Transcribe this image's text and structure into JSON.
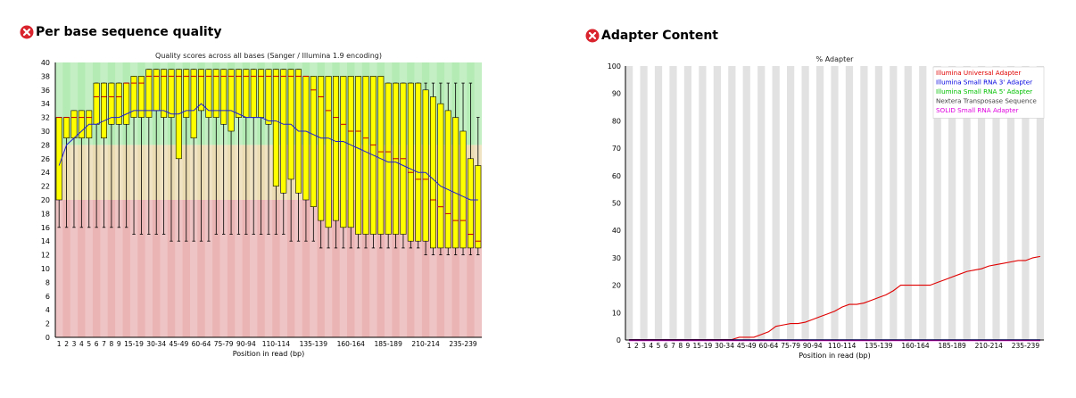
{
  "colors": {
    "fail_icon": "#d9232d",
    "box_fill": "#ffff00",
    "mean_line": "#1f1fd0",
    "median_line": "#c00000",
    "zone_good": "#b4ebb4",
    "zone_ok": "#ebdcb4",
    "zone_bad": "#ebb4b4",
    "adapter_line": "#d00000"
  },
  "chart_data": [
    {
      "type": "box",
      "heading": "Per base sequence quality",
      "title": "Quality scores across all bases (Sanger / Illumina 1.9 encoding)",
      "xlabel": "Position in read (bp)",
      "ylabel": "",
      "ylim": [
        0,
        40
      ],
      "y_ticks": [
        0,
        2,
        4,
        6,
        8,
        10,
        12,
        14,
        16,
        18,
        20,
        22,
        24,
        26,
        28,
        30,
        32,
        34,
        36,
        38,
        40
      ],
      "zones": [
        {
          "from": 0,
          "to": 20,
          "quality": "bad"
        },
        {
          "from": 20,
          "to": 28,
          "quality": "ok"
        },
        {
          "from": 28,
          "to": 40,
          "quality": "good"
        }
      ],
      "x_ticks": [
        "1",
        "2",
        "3",
        "4",
        "5",
        "6",
        "7",
        "8",
        "9",
        "15-19",
        "30-34",
        "45-49",
        "60-64",
        "75-79",
        "90-94",
        "110-114",
        "135-139",
        "160-164",
        "185-189",
        "210-214",
        "235-239"
      ],
      "categories": [
        "1",
        "2",
        "3",
        "4",
        "5",
        "6",
        "7",
        "8",
        "9",
        "10-14",
        "15-19",
        "20-24",
        "25-29",
        "30-34",
        "35-39",
        "40-44",
        "45-49",
        "50-54",
        "55-59",
        "60-64",
        "65-69",
        "70-74",
        "75-79",
        "80-84",
        "85-89",
        "90-94",
        "95-99",
        "100-104",
        "105-109",
        "110-114",
        "115-119",
        "120-124",
        "125-129",
        "130-134",
        "135-139",
        "140-144",
        "145-149",
        "150-154",
        "155-159",
        "160-164",
        "165-169",
        "170-174",
        "175-179",
        "180-184",
        "185-189",
        "190-194",
        "195-199",
        "200-204",
        "205-209",
        "210-214",
        "215-219",
        "220-224",
        "225-229",
        "230-234",
        "235-239",
        "240-244",
        "245-249"
      ],
      "series": [
        {
          "name": "lower_whisker",
          "values": [
            16,
            16,
            16,
            16,
            16,
            16,
            16,
            16,
            16,
            16,
            15,
            15,
            15,
            15,
            15,
            14,
            14,
            14,
            14,
            14,
            14,
            15,
            15,
            15,
            15,
            15,
            15,
            15,
            15,
            15,
            15,
            14,
            14,
            14,
            14,
            13,
            13,
            13,
            13,
            13,
            13,
            13,
            13,
            13,
            13,
            13,
            13,
            13,
            13,
            12,
            12,
            12,
            12,
            12,
            12,
            12,
            12
          ]
        },
        {
          "name": "q1",
          "values": [
            20,
            29,
            29,
            29,
            29,
            31,
            29,
            31,
            31,
            31,
            32,
            32,
            32,
            33,
            32,
            32,
            26,
            32,
            29,
            33,
            32,
            32,
            31,
            30,
            32,
            32,
            32,
            32,
            31,
            22,
            21,
            23,
            21,
            20,
            19,
            17,
            16,
            17,
            16,
            16,
            15,
            15,
            15,
            15,
            15,
            15,
            15,
            14,
            14,
            14,
            13,
            13,
            13,
            13,
            13,
            13,
            13
          ]
        },
        {
          "name": "median",
          "values": [
            32,
            32,
            32,
            32,
            32,
            35,
            35,
            35,
            35,
            37,
            37,
            37,
            38,
            38,
            38,
            38,
            38,
            38,
            38,
            38,
            38,
            38,
            38,
            38,
            38,
            38,
            38,
            38,
            38,
            38,
            38,
            38,
            38,
            38,
            36,
            35,
            33,
            32,
            31,
            30,
            30,
            29,
            28,
            27,
            27,
            26,
            26,
            24,
            23,
            23,
            20,
            19,
            18,
            17,
            17,
            15,
            14
          ]
        },
        {
          "name": "q3",
          "values": [
            32,
            32,
            33,
            33,
            33,
            37,
            37,
            37,
            37,
            37,
            38,
            38,
            39,
            39,
            39,
            39,
            39,
            39,
            39,
            39,
            39,
            39,
            39,
            39,
            39,
            39,
            39,
            39,
            39,
            39,
            39,
            39,
            39,
            38,
            38,
            38,
            38,
            38,
            38,
            38,
            38,
            38,
            38,
            38,
            37,
            37,
            37,
            37,
            37,
            36,
            35,
            34,
            33,
            32,
            30,
            26,
            25
          ]
        },
        {
          "name": "upper_whisker",
          "values": [
            32,
            32,
            33,
            33,
            33,
            37,
            37,
            37,
            37,
            37,
            38,
            38,
            39,
            39,
            39,
            39,
            39,
            39,
            39,
            39,
            39,
            39,
            39,
            39,
            39,
            39,
            39,
            39,
            39,
            39,
            39,
            39,
            39,
            38,
            38,
            38,
            38,
            38,
            38,
            38,
            38,
            38,
            38,
            38,
            37,
            37,
            37,
            37,
            37,
            37,
            37,
            37,
            37,
            37,
            37,
            37,
            32
          ]
        },
        {
          "name": "mean",
          "values": [
            25,
            28,
            29,
            30,
            31,
            31,
            31.5,
            32,
            32,
            32.5,
            33,
            33,
            33,
            33,
            33,
            32.5,
            32.5,
            33,
            33,
            34,
            33,
            33,
            33,
            33,
            32.5,
            32,
            32,
            32,
            31.5,
            31.5,
            31,
            31,
            30,
            30,
            29.5,
            29,
            29,
            28.5,
            28.5,
            28,
            27.5,
            27,
            26.5,
            26,
            25.5,
            25.5,
            25,
            24.5,
            24,
            24,
            23,
            22,
            21.5,
            21,
            20.5,
            20,
            20
          ]
        }
      ]
    },
    {
      "type": "line",
      "heading": "Adapter Content",
      "title": "% Adapter",
      "xlabel": "Position in read (bp)",
      "ylabel": "",
      "ylim": [
        0,
        100
      ],
      "y_ticks": [
        0,
        10,
        20,
        30,
        40,
        50,
        60,
        70,
        80,
        90,
        100
      ],
      "legend_position": "top-right",
      "x_ticks": [
        "1",
        "2",
        "3",
        "4",
        "5",
        "6",
        "7",
        "8",
        "9",
        "15-19",
        "30-34",
        "45-49",
        "60-64",
        "75-79",
        "90-94",
        "110-114",
        "135-139",
        "160-164",
        "185-189",
        "210-214",
        "235-239"
      ],
      "categories": [
        "1",
        "2",
        "3",
        "4",
        "5",
        "6",
        "7",
        "8",
        "9",
        "10-14",
        "15-19",
        "20-24",
        "25-29",
        "30-34",
        "35-39",
        "40-44",
        "45-49",
        "50-54",
        "55-59",
        "60-64",
        "65-69",
        "70-74",
        "75-79",
        "80-84",
        "85-89",
        "90-94",
        "95-99",
        "100-104",
        "105-109",
        "110-114",
        "115-119",
        "120-124",
        "125-129",
        "130-134",
        "135-139",
        "140-144",
        "145-149",
        "150-154",
        "155-159",
        "160-164",
        "165-169",
        "170-174",
        "175-179",
        "180-184",
        "185-189",
        "190-194",
        "195-199",
        "200-204",
        "205-209",
        "210-214",
        "215-219",
        "220-224",
        "225-229",
        "230-234",
        "235-239",
        "240-244",
        "245-249"
      ],
      "series": [
        {
          "name": "Illumina Universal Adapter",
          "color": "#e00000",
          "values": [
            0,
            0,
            0,
            0,
            0,
            0,
            0,
            0,
            0,
            0,
            0,
            0,
            0,
            0,
            0,
            1,
            1,
            1,
            2,
            3,
            5,
            5.5,
            6,
            6,
            6.5,
            7.5,
            8.5,
            9.5,
            10.5,
            12,
            13,
            13,
            13.5,
            14.5,
            15.5,
            16.5,
            18,
            20,
            20,
            20,
            20,
            20,
            21,
            22,
            23,
            24,
            25,
            25.5,
            26,
            27,
            27.5,
            28,
            28.5,
            29,
            29,
            30,
            30.5
          ]
        },
        {
          "name": "Illumina Small RNA 3' Adapter",
          "color": "#0000e0",
          "values": [
            0,
            0,
            0,
            0,
            0,
            0,
            0,
            0,
            0,
            0,
            0,
            0,
            0,
            0,
            0,
            0,
            0,
            0,
            0,
            0,
            0,
            0,
            0,
            0,
            0,
            0,
            0,
            0,
            0,
            0,
            0,
            0,
            0,
            0,
            0,
            0,
            0,
            0,
            0,
            0,
            0,
            0,
            0,
            0,
            0,
            0,
            0,
            0,
            0,
            0,
            0,
            0,
            0,
            0,
            0,
            0,
            0
          ]
        },
        {
          "name": "Illumina Small RNA 5' Adapter",
          "color": "#00c000",
          "values": [
            0,
            0,
            0,
            0,
            0,
            0,
            0,
            0,
            0,
            0,
            0,
            0,
            0,
            0,
            0,
            0,
            0,
            0,
            0,
            0,
            0,
            0,
            0,
            0,
            0,
            0,
            0,
            0,
            0,
            0,
            0,
            0,
            0,
            0,
            0,
            0,
            0,
            0,
            0,
            0,
            0,
            0,
            0,
            0,
            0,
            0,
            0,
            0,
            0,
            0,
            0,
            0,
            0,
            0,
            0,
            0,
            0
          ]
        },
        {
          "name": "Nextera Transposase Sequence",
          "color": "#404040",
          "values": [
            0,
            0,
            0,
            0,
            0,
            0,
            0,
            0,
            0,
            0,
            0,
            0,
            0,
            0,
            0,
            0,
            0,
            0,
            0,
            0,
            0,
            0,
            0,
            0,
            0,
            0,
            0,
            0,
            0,
            0,
            0,
            0,
            0,
            0,
            0,
            0,
            0,
            0,
            0,
            0,
            0,
            0,
            0,
            0,
            0,
            0,
            0,
            0,
            0,
            0,
            0,
            0,
            0,
            0,
            0,
            0,
            0
          ]
        },
        {
          "name": "SOLID Small RNA Adapter",
          "color": "#e000e0",
          "values": [
            0,
            0,
            0,
            0,
            0,
            0,
            0,
            0,
            0,
            0,
            0,
            0,
            0,
            0,
            0,
            0,
            0,
            0,
            0,
            0,
            0,
            0,
            0,
            0,
            0,
            0,
            0,
            0,
            0,
            0,
            0,
            0,
            0,
            0,
            0,
            0,
            0,
            0,
            0,
            0,
            0,
            0,
            0,
            0,
            0,
            0,
            0,
            0,
            0,
            0,
            0,
            0,
            0,
            0,
            0,
            0,
            0
          ]
        }
      ]
    }
  ]
}
